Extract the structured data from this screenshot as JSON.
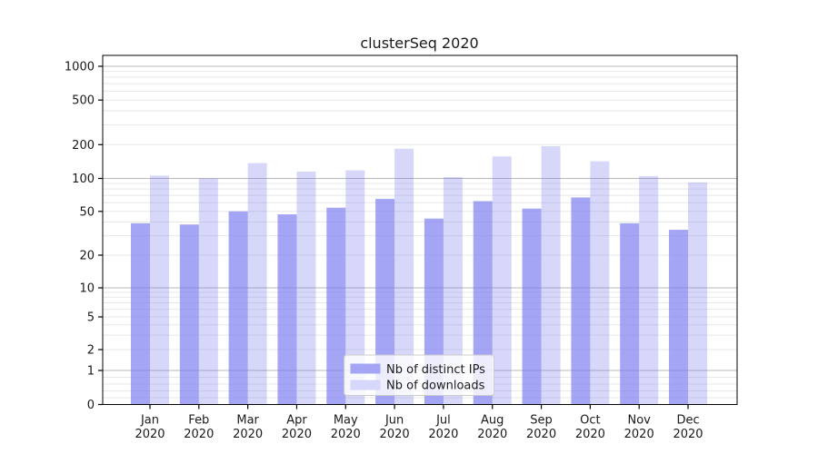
{
  "title": "clusterSeq 2020",
  "colors": {
    "bar_base": "#7b7bf0",
    "dark_bar_legend": "#a5a5f5",
    "light_bar_legend": "#d7d7fb",
    "grid_major": "#b8b8b8",
    "grid_minor": "#e8e8e8",
    "axis": "#000000",
    "text": "#1a1a1a",
    "legend_border": "#cccccc"
  },
  "chart_data": {
    "type": "bar",
    "title": "clusterSeq 2020",
    "yscale": "log-like (0, 1 .. 1000)",
    "grid": true,
    "legend_position": "lower center",
    "categories": [
      [
        "Jan",
        "2020"
      ],
      [
        "Feb",
        "2020"
      ],
      [
        "Mar",
        "2020"
      ],
      [
        "Apr",
        "2020"
      ],
      [
        "May",
        "2020"
      ],
      [
        "Jun",
        "2020"
      ],
      [
        "Jul",
        "2020"
      ],
      [
        "Aug",
        "2020"
      ],
      [
        "Sep",
        "2020"
      ],
      [
        "Oct",
        "2020"
      ],
      [
        "Nov",
        "2020"
      ],
      [
        "Dec",
        "2020"
      ]
    ],
    "y_ticks": [
      0,
      1,
      2,
      5,
      10,
      20,
      50,
      100,
      200,
      500,
      1000
    ],
    "ylim": [
      0,
      1200
    ],
    "series": [
      {
        "name": "Nb of distinct IPs",
        "values": [
          39,
          38,
          50,
          47,
          54,
          65,
          43,
          62,
          53,
          67,
          39,
          34
        ],
        "fill_opacity": 0.68,
        "legend_color": "#a5a5f5"
      },
      {
        "name": "Nb of downloads",
        "values": [
          106,
          100,
          137,
          115,
          118,
          184,
          103,
          157,
          194,
          142,
          105,
          92
        ],
        "fill_opacity": 0.3,
        "legend_color": "#d7d7fb"
      }
    ]
  }
}
